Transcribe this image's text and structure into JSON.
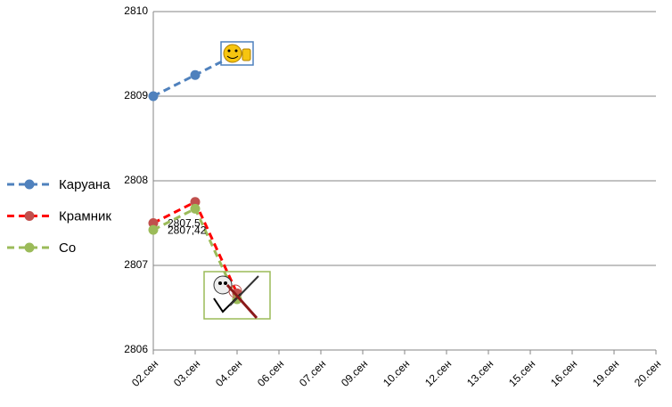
{
  "chart_data": {
    "type": "line",
    "categories": [
      "02.сен",
      "03.сен",
      "04.сен",
      "06.сен",
      "07.сен",
      "09.сен",
      "10.сен",
      "12.сен",
      "13.сен",
      "15.сен",
      "16.сен",
      "19.сен",
      "20.сен"
    ],
    "series": [
      {
        "name": "Каруана",
        "color": "#4f81bd",
        "values": [
          2809,
          2809.25,
          2809.5,
          null,
          null,
          null,
          null,
          null,
          null,
          null,
          null,
          null,
          null
        ]
      },
      {
        "name": "Крамник",
        "color": "#ff0000",
        "marker_color": "#c0504d",
        "values": [
          2807.5,
          2807.75,
          2806.67,
          null,
          null,
          null,
          null,
          null,
          null,
          null,
          null,
          null,
          null
        ],
        "value_labels": [
          "2807,5",
          null,
          null,
          null,
          null,
          null,
          null,
          null,
          null,
          null,
          null,
          null,
          null
        ]
      },
      {
        "name": "Со",
        "color": "#9bbb59",
        "values": [
          2807.42,
          2807.67,
          2806.6,
          null,
          null,
          null,
          null,
          null,
          null,
          null,
          null,
          null,
          null
        ],
        "value_labels": [
          "2807,42",
          null,
          null,
          null,
          null,
          null,
          null,
          null,
          null,
          null,
          null,
          null,
          null
        ]
      }
    ],
    "ylim": [
      2806,
      2810
    ],
    "yticks": [
      2806,
      2807,
      2808,
      2809,
      2810
    ],
    "grid": true,
    "legend": "left"
  }
}
